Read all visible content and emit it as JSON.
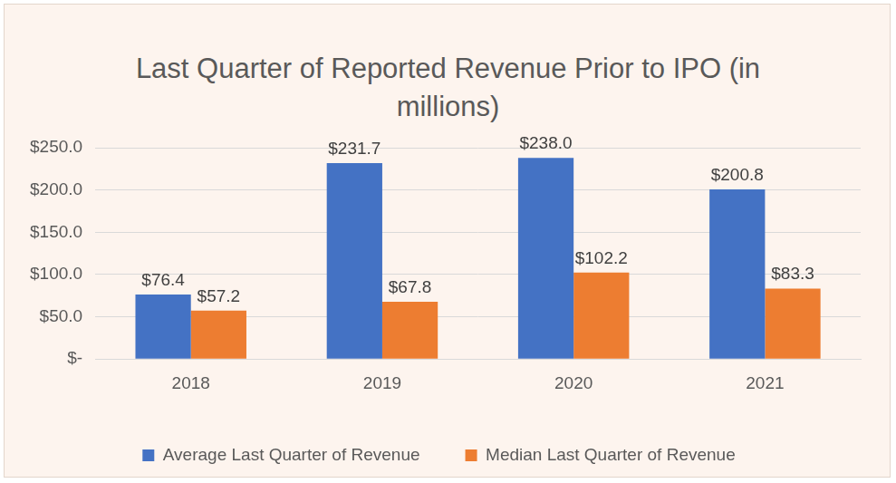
{
  "chart_data": {
    "type": "bar",
    "title": "Last Quarter of Reported Revenue Prior to IPO (in millions)",
    "categories": [
      "2018",
      "2019",
      "2020",
      "2021"
    ],
    "series": [
      {
        "name": "Average Last Quarter of Revenue",
        "color": "#4472c4",
        "values": [
          76.4,
          231.7,
          238.0,
          200.8
        ],
        "value_labels": [
          "$76.4",
          "$231.7",
          "$238.0",
          "$200.8"
        ]
      },
      {
        "name": "Median Last Quarter of Revenue",
        "color": "#ed7d31",
        "values": [
          57.2,
          67.8,
          102.2,
          83.3
        ],
        "value_labels": [
          "$57.2",
          "$67.8",
          "$102.2",
          "$83.3"
        ]
      }
    ],
    "ylim": [
      0,
      250
    ],
    "yticks": [
      {
        "value": 0,
        "label": "$-"
      },
      {
        "value": 50,
        "label": "$50.0"
      },
      {
        "value": 100,
        "label": "$100.0"
      },
      {
        "value": 150,
        "label": "$150.0"
      },
      {
        "value": 200,
        "label": "$200.0"
      },
      {
        "value": 250,
        "label": "$250.0"
      }
    ],
    "grid": true,
    "legend": "bottom",
    "data_labels": true
  }
}
